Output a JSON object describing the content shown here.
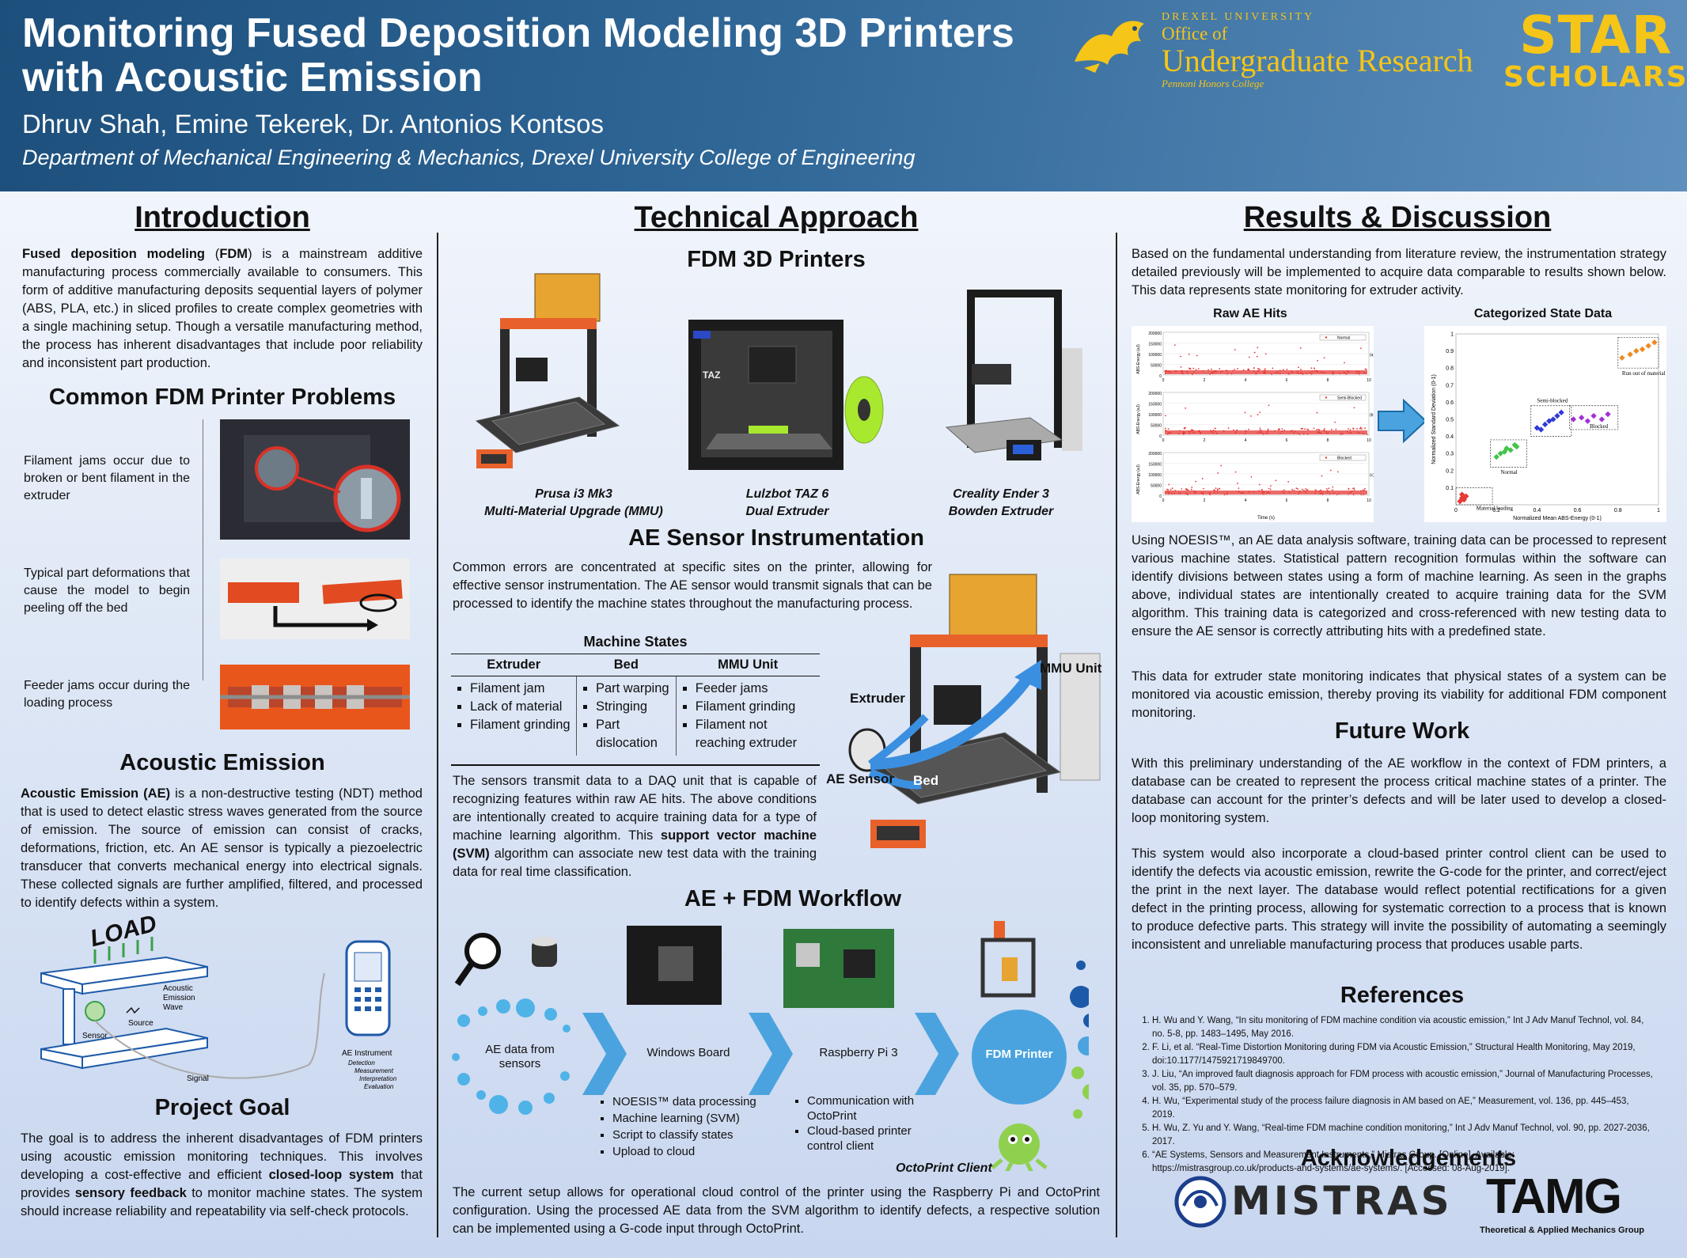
{
  "header": {
    "title": "Monitoring Fused Deposition Modeling 3D Printers with Acoustic Emission",
    "authors": "Dhruv Shah, Emine Tekerek, Dr. Antonios Kontsos",
    "department": "Department of Mechanical Engineering & Mechanics, Drexel University College of Engineering",
    "logo_our": {
      "line1": "DREXEL UNIVERSITY",
      "line2": "Office of",
      "line3": "Undergraduate Research",
      "line4": "Pennoni Honors College"
    },
    "logo_star": {
      "line1": "STAR",
      "line2": "SCHOLARS"
    },
    "accent": "#f5c518"
  },
  "introduction": {
    "heading": "Introduction",
    "p_bold1": "Fused deposition modeling",
    "p_mid1": " (",
    "p_bold2": "FDM",
    "p_rest": ") is a mainstream additive manufacturing process commercially available to consumers. This form of additive manufacturing deposits sequential layers of polymer (ABS, PLA, etc.) in sliced profiles to create complex geometries with a single machining setup. Though a versatile manufacturing method, the process has inherent disadvantages that include poor reliability and inconsistent part production."
  },
  "problems": {
    "heading": "Common FDM Printer Problems",
    "items": [
      "Filament jams occur due to broken or bent filament in the extruder",
      "Typical part deformations that cause the model to begin peeling off the bed",
      "Feeder jams occur during the loading process"
    ]
  },
  "acoustic": {
    "heading": "Acoustic Emission",
    "bold": "Acoustic Emission (AE)",
    "text": " is a non-destructive testing (NDT) method that is used to detect elastic stress waves generated from the source of emission. The source of emission can consist of cracks, deformations, friction, etc. An AE sensor is typically a piezoelectric transducer that converts mechanical energy into electrical signals. These collected signals are further amplified, filtered, and processed to identify defects within a system.",
    "diagram": {
      "load": "LOAD",
      "wave1": "Acoustic",
      "wave2": "Emission",
      "wave3": "Wave",
      "source": "Source",
      "sensor": "Sensor",
      "signal": "Signal",
      "instrument": "AE Instrument",
      "steps": [
        "Detection",
        "Measurement",
        "Interpretation",
        "Evaluation"
      ]
    }
  },
  "goal": {
    "heading": "Project Goal",
    "t1": "The goal is to address the inherent disadvantages of FDM printers using acoustic emission monitoring techniques. This involves developing a cost-effective and efficient ",
    "b1": "closed-loop system",
    "t2": " that provides ",
    "b2": "sensory feedback",
    "t3": " to monitor machine states. The system should increase reliability and repeatability via self-check protocols."
  },
  "technical": {
    "heading": "Technical Approach",
    "printers_heading": "FDM 3D Printers",
    "printers": [
      {
        "name": "Prusa i3 Mk3",
        "sub": "Multi-Material Upgrade (MMU)"
      },
      {
        "name": "Lulzbot TAZ 6",
        "sub": "Dual Extruder"
      },
      {
        "name": "Creality Ender 3",
        "sub": "Bowden Extruder"
      }
    ],
    "ae_heading": "AE Sensor Instrumentation",
    "ae_text": "Common errors are concentrated at specific sites on the printer, allowing for effective sensor instrumentation. The AE sensor would transmit signals that can be processed to identify the machine states throughout the manufacturing process.",
    "table_title": "Machine States",
    "table_headers": [
      "Extruder",
      "Bed",
      "MMU Unit"
    ],
    "table_cols": [
      [
        "Filament jam",
        "Lack of material",
        "Filament grinding"
      ],
      [
        "Part warping",
        "Stringing",
        "Part dislocation"
      ],
      [
        "Feeder jams",
        "Filament grinding",
        "Filament not reaching extruder"
      ]
    ],
    "daq_t1": "The sensors transmit data to a DAQ unit that is capable of recognizing features within raw AE hits. The above conditions are intentionally created to acquire training data for a type of machine learning algorithm. This ",
    "daq_b": "support vector machine (SVM)",
    "daq_t2": " algorithm can associate new test data with the training data for real time classification.",
    "labels": {
      "mmu": "MMU Unit",
      "extruder": "Extruder",
      "sensor": "AE Sensor",
      "bed": "Bed"
    }
  },
  "workflow": {
    "heading": "AE + FDM Workflow",
    "nodes": [
      "AE data from sensors",
      "Windows Board",
      "Raspberry Pi 3",
      "FDM Printer"
    ],
    "windows_bullets": [
      "NOESIS™ data processing",
      "Machine learning (SVM)",
      "Script to classify states",
      "Upload to cloud"
    ],
    "pi_bullets": [
      "Communication with OctoPrint",
      "Cloud-based printer control client"
    ],
    "octoprint": "OctoPrint Client",
    "text": "The current setup allows for operational cloud control of the printer using the Raspberry Pi and OctoPrint configuration. Using the processed AE data from the SVM algorithm to identify defects, a respective solution can be implemented using a G-code input through OctoPrint."
  },
  "results": {
    "heading": "Results & Discussion",
    "p1": "Based on the fundamental understanding from literature review, the instrumentation strategy detailed previously will be implemented to acquire data comparable to results shown below. This data represents state monitoring for extruder activity.",
    "p2": "Using NOESIS™, an AE data analysis software, training data can be processed to represent various machine states. Statistical pattern recognition formulas within the software can identify divisions between states using a form of machine learning. As seen in the graphs above, individual states are intentionally created to acquire training data for the SVM algorithm. This training data is categorized and cross-referenced with new testing data to ensure the AE sensor is correctly attributing hits with a predefined state.",
    "p3": "This data for extruder state monitoring indicates that physical states of a system can be monitored via acoustic emission, thereby proving its viability for additional FDM component monitoring.",
    "raw_title": "Raw AE Hits",
    "cat_title": "Categorized State Data",
    "raw_panels": [
      "Normal",
      "Semi-Blocked",
      "Blocked"
    ],
    "raw_tags": [
      "(a)",
      "(b)",
      "(c)"
    ],
    "raw_ylabel": "ABS-Energy (aJ)",
    "raw_xlabel": "Time (s)",
    "raw_yticks": [
      "200000",
      "150000",
      "100000",
      "50000",
      "0"
    ],
    "raw_xticks": [
      "0",
      "2",
      "4",
      "6",
      "8",
      "10"
    ],
    "cat_xlabel": "Normalized Mean ABS-Energy (0-1)",
    "cat_ylabel": "Normalized Standard Deviation (0-1)",
    "cat_xticks": [
      "0",
      "0.2",
      "0.4",
      "0.6",
      "0.8",
      "1"
    ],
    "cat_yticks": [
      "0.1",
      "0.2",
      "0.3",
      "0.4",
      "0.5",
      "0.6",
      "0.7",
      "0.8",
      "0.9",
      "1"
    ],
    "cat_labels": [
      "Run out of material",
      "Semi-blocked",
      "Blocked",
      "Normal",
      "Material loading"
    ]
  },
  "chart_data": {
    "type": "scatter",
    "title": "Categorized State Data",
    "xlabel": "Normalized Mean ABS-Energy (0-1)",
    "ylabel": "Normalized Standard Deviation (0-1)",
    "xlim": [
      0,
      1
    ],
    "ylim": [
      0,
      1
    ],
    "series": [
      {
        "name": "Material loading",
        "color": "#e53935",
        "points": [
          [
            0.02,
            0.02
          ],
          [
            0.03,
            0.04
          ],
          [
            0.04,
            0.03
          ],
          [
            0.05,
            0.05
          ],
          [
            0.03,
            0.06
          ]
        ]
      },
      {
        "name": "Normal",
        "color": "#43c44a",
        "points": [
          [
            0.2,
            0.28
          ],
          [
            0.22,
            0.3
          ],
          [
            0.24,
            0.31
          ],
          [
            0.25,
            0.33
          ],
          [
            0.27,
            0.32
          ],
          [
            0.29,
            0.35
          ],
          [
            0.3,
            0.34
          ]
        ]
      },
      {
        "name": "Semi-blocked",
        "color": "#2f3ad6",
        "points": [
          [
            0.4,
            0.45
          ],
          [
            0.42,
            0.44
          ],
          [
            0.44,
            0.47
          ],
          [
            0.46,
            0.49
          ],
          [
            0.48,
            0.5
          ],
          [
            0.5,
            0.52
          ],
          [
            0.52,
            0.54
          ]
        ]
      },
      {
        "name": "Blocked",
        "color": "#a12fd6",
        "points": [
          [
            0.58,
            0.5
          ],
          [
            0.62,
            0.51
          ],
          [
            0.65,
            0.49
          ],
          [
            0.68,
            0.52
          ],
          [
            0.72,
            0.5
          ],
          [
            0.75,
            0.53
          ]
        ]
      },
      {
        "name": "Run out of material",
        "color": "#ef8a1f",
        "points": [
          [
            0.82,
            0.86
          ],
          [
            0.86,
            0.88
          ],
          [
            0.89,
            0.9
          ],
          [
            0.92,
            0.91
          ],
          [
            0.95,
            0.93
          ],
          [
            0.98,
            0.95
          ]
        ]
      }
    ]
  },
  "future": {
    "heading": "Future Work",
    "p1": "With this preliminary understanding of the AE workflow in the context of FDM printers, a database can be created to represent the process critical machine states of a printer. The database can account for the printer’s defects and will be later used to develop a closed-loop monitoring system.",
    "p2": "This system would also incorporate a cloud-based printer control client can be used to identify the defects via acoustic emission, rewrite the G-code for the printer, and correct/eject the print in the next layer. The database would reflect potential rectifications for a given defect in the printing process, allowing for systematic correction to a process that is known to produce defective parts. This strategy will invite the possibility of automating a seemingly inconsistent and unreliable manufacturing process that produces usable parts."
  },
  "references": {
    "heading": "References",
    "items": [
      "H. Wu and Y. Wang, “In situ monitoring of FDM machine condition via acoustic emission,” Int J Adv Manuf Technol, vol. 84, no. 5-8, pp. 1483–1495, May 2016.",
      "F. Li, et al. “Real-Time Distortion Monitoring during FDM via Acoustic Emission,” Structural Health Monitoring, May 2019, doi:10.1177/1475921719849700.",
      "J. Liu, “An improved fault diagnosis approach for FDM process with acoustic emission,” Journal of Manufacturing Processes, vol. 35, pp. 570–579.",
      "H. Wu, “Experimental study of the process failure diagnosis in AM based on AE,” Measurement, vol. 136, pp. 445–453, 2019.",
      "H. Wu, Z. Yu and Y. Wang, “Real-time FDM machine condition monitoring,” Int J Adv Manuf Technol, vol. 90, pp. 2027-2036, 2017.",
      "“AE Systems, Sensors and Measurement Instruments,” Mistras Group. [Online]. Available: https://mistrasgroup.co.uk/products-and-systems/ae-systems/. [Accessed: 08-Aug-2019]."
    ]
  },
  "acknowledgements": {
    "heading": "Acknowledgements",
    "mistras": "MISTRAS",
    "tamg": "TAMG",
    "tamg_sub": "Theoretical & Applied Mechanics Group"
  }
}
